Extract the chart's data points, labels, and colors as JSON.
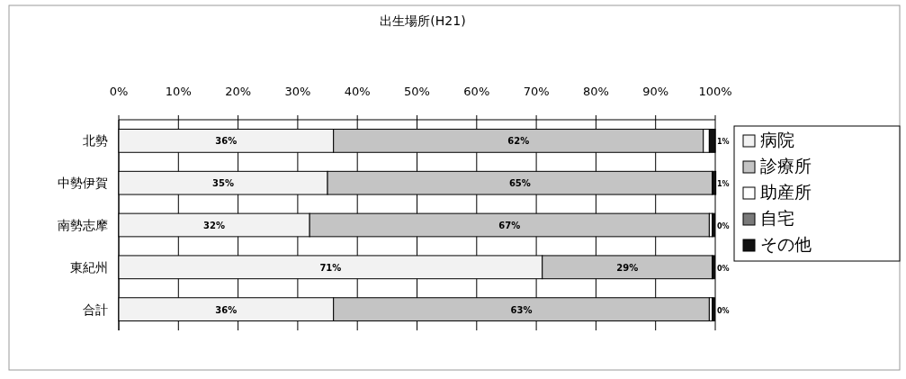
{
  "chart_data": {
    "type": "bar",
    "orientation": "horizontal",
    "stacked": true,
    "title": "出生場所(H21)",
    "categories": [
      "北勢",
      "中勢伊賀",
      "南勢志摩",
      "東紀州",
      "合計"
    ],
    "xlim": [
      0,
      100
    ],
    "xticks": [
      {
        "value": 0,
        "label": "0%"
      },
      {
        "value": 10,
        "label": "10%"
      },
      {
        "value": 20,
        "label": "20%"
      },
      {
        "value": 30,
        "label": "30%"
      },
      {
        "value": 40,
        "label": "40%"
      },
      {
        "value": 50,
        "label": "50%"
      },
      {
        "value": 60,
        "label": "60%"
      },
      {
        "value": 70,
        "label": "70%"
      },
      {
        "value": 80,
        "label": "80%"
      },
      {
        "value": 90,
        "label": "90%"
      },
      {
        "value": 100,
        "label": "100%"
      }
    ],
    "grid": "x",
    "legend": "right",
    "series": [
      {
        "name": "病院",
        "color": "#f2f2f2",
        "values": [
          36,
          35,
          32,
          71,
          36
        ],
        "value_labels": [
          "36%",
          "35%",
          "32%",
          "71%",
          "36%"
        ]
      },
      {
        "name": "診療所",
        "color": "#c4c4c4",
        "values": [
          62,
          64.5,
          67,
          28.5,
          63
        ],
        "value_labels": [
          "62%",
          "65%",
          "67%",
          "29%",
          "63%"
        ]
      },
      {
        "name": "助産所",
        "color": "#ffffff",
        "values": [
          1,
          0,
          0.5,
          0,
          0.5
        ]
      },
      {
        "name": "自宅",
        "color": "#7a7a7a",
        "values": [
          0,
          0,
          0,
          0,
          0
        ],
        "value_labels": [
          null,
          null,
          null,
          null,
          null
        ]
      },
      {
        "name": "その他",
        "color": "#111111",
        "values": [
          1,
          0.6,
          0.4,
          0.4,
          0.4
        ],
        "value_labels": [
          "1%",
          "1%",
          "0%",
          "0%",
          "0%"
        ]
      }
    ]
  }
}
